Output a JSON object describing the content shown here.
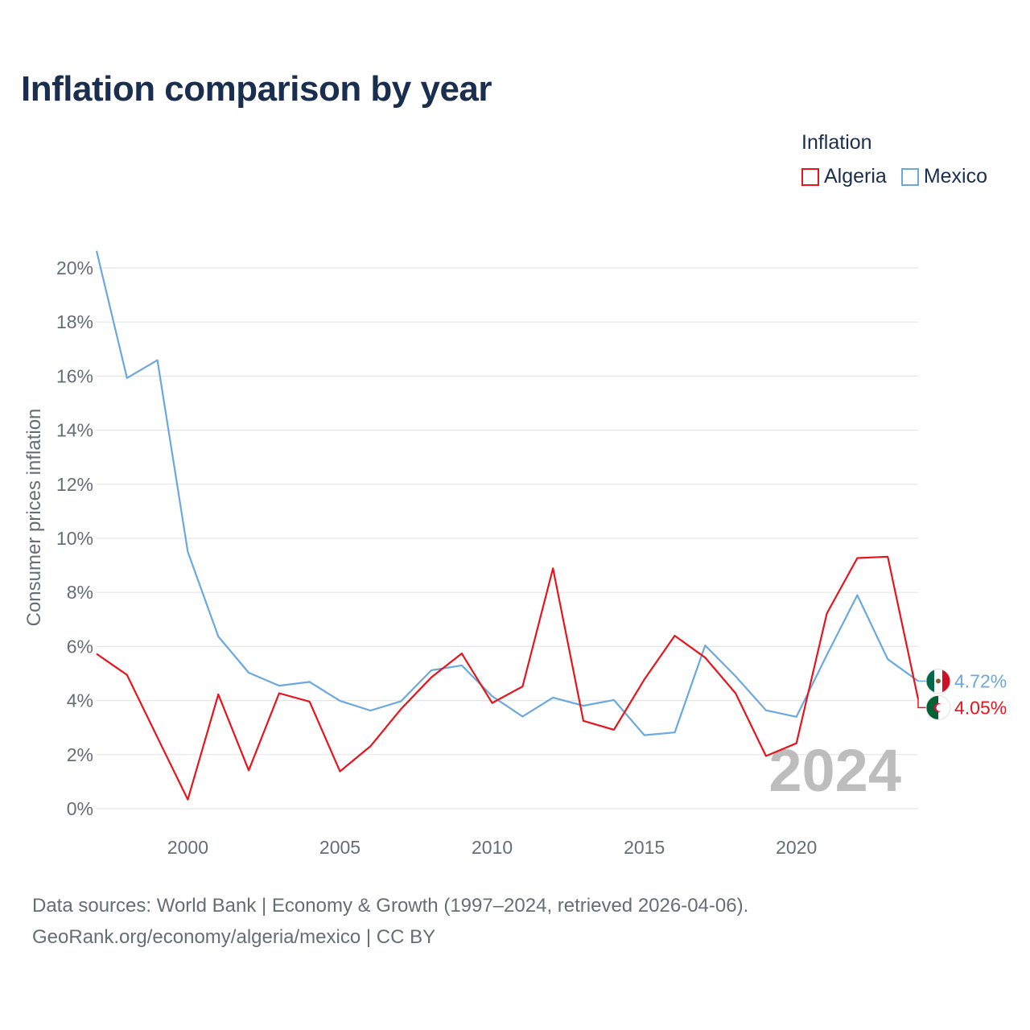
{
  "title": "Inflation comparison by year",
  "legend": {
    "title": "Inflation",
    "items": [
      {
        "label": "Algeria",
        "color": "#e8141c"
      },
      {
        "label": "Mexico",
        "color": "#6aa8e0"
      }
    ]
  },
  "footer": {
    "line1": "Data sources: World Bank | Economy & Growth (1997–2024, retrieved 2026-04-06).",
    "line2": "GeoRank.org/economy/algeria/mexico | CC BY"
  },
  "chart_data": {
    "type": "line",
    "title": "Inflation comparison by year",
    "xlabel": "",
    "ylabel": "Consumer prices inflation",
    "xlim": [
      1997,
      2024
    ],
    "ylim": [
      0,
      20
    ],
    "x_ticks": [
      2000,
      2005,
      2010,
      2015,
      2020
    ],
    "x_tick_labels": [
      "2000",
      "2005",
      "2010",
      "2015",
      "2020"
    ],
    "y_ticks": [
      0,
      2,
      4,
      6,
      8,
      10,
      12,
      14,
      16,
      18,
      20
    ],
    "y_tick_labels": [
      "0%",
      "2%",
      "4%",
      "6%",
      "8%",
      "10%",
      "12%",
      "14%",
      "16%",
      "18%",
      "20%"
    ],
    "year_watermark": "2024",
    "grid": true,
    "x": [
      1997,
      1998,
      1999,
      2000,
      2001,
      2002,
      2003,
      2004,
      2005,
      2006,
      2007,
      2008,
      2009,
      2010,
      2011,
      2012,
      2013,
      2014,
      2015,
      2016,
      2017,
      2018,
      2019,
      2020,
      2021,
      2022,
      2023,
      2024
    ],
    "series": [
      {
        "name": "Algeria",
        "color": "#e8141c",
        "end_label": "4.05%",
        "flag": "algeria",
        "values": [
          5.73,
          4.95,
          2.64,
          0.34,
          4.23,
          1.42,
          4.27,
          3.96,
          1.38,
          2.31,
          3.68,
          4.86,
          5.74,
          3.91,
          4.52,
          8.89,
          3.25,
          2.92,
          4.78,
          6.4,
          5.59,
          4.27,
          1.95,
          2.42,
          7.23,
          9.27,
          9.32,
          4.05
        ]
      },
      {
        "name": "Mexico",
        "color": "#6aa8e0",
        "end_label": "4.72%",
        "flag": "mexico",
        "values": [
          20.63,
          15.93,
          16.59,
          9.5,
          6.37,
          5.03,
          4.55,
          4.69,
          3.99,
          3.63,
          3.97,
          5.12,
          5.3,
          4.16,
          3.41,
          4.11,
          3.81,
          4.02,
          2.72,
          2.82,
          6.04,
          4.9,
          3.64,
          3.4,
          5.69,
          7.9,
          5.53,
          4.72
        ]
      }
    ]
  }
}
